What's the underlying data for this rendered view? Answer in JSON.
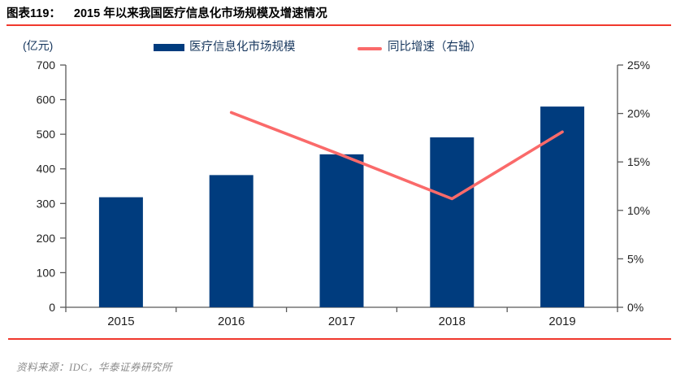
{
  "header": {
    "figure_label": "图表119：",
    "title": "2015 年以来我国医疗信息化市场规模及增速情况"
  },
  "legend": {
    "bar_label": "医疗信息化市场规模",
    "line_label": "同比增速（右轴）"
  },
  "axes": {
    "left_unit": "(亿元)"
  },
  "footer": {
    "source": "资料来源：IDC，华泰证券研究所"
  },
  "colors": {
    "bar": "#003C7E",
    "line": "#FA6A6A",
    "accent_red": "#F0382D",
    "axis": "#595959",
    "tick_text": "#1f1f1f",
    "legend_text": "#17375E",
    "source_text": "#8a8a8a"
  },
  "chart_data": {
    "type": "bar",
    "title": "2015 年以来我国医疗信息化市场规模及增速情况",
    "categories": [
      "2015",
      "2016",
      "2017",
      "2018",
      "2019"
    ],
    "series": [
      {
        "name": "医疗信息化市场规模",
        "type": "bar",
        "axis": "left",
        "values": [
          318,
          382,
          442,
          491,
          580
        ]
      },
      {
        "name": "同比增速（右轴）",
        "type": "line",
        "axis": "right",
        "values": [
          null,
          20.1,
          15.7,
          11.2,
          18.1
        ]
      }
    ],
    "xlabel": "",
    "ylabel_left": "(亿元)",
    "ylabel_right": "",
    "left_axis": {
      "min": 0,
      "max": 700,
      "step": 100
    },
    "right_axis": {
      "min": 0,
      "max": 25,
      "step": 5,
      "suffix": "%"
    },
    "grid": false,
    "legend_position": "top"
  }
}
